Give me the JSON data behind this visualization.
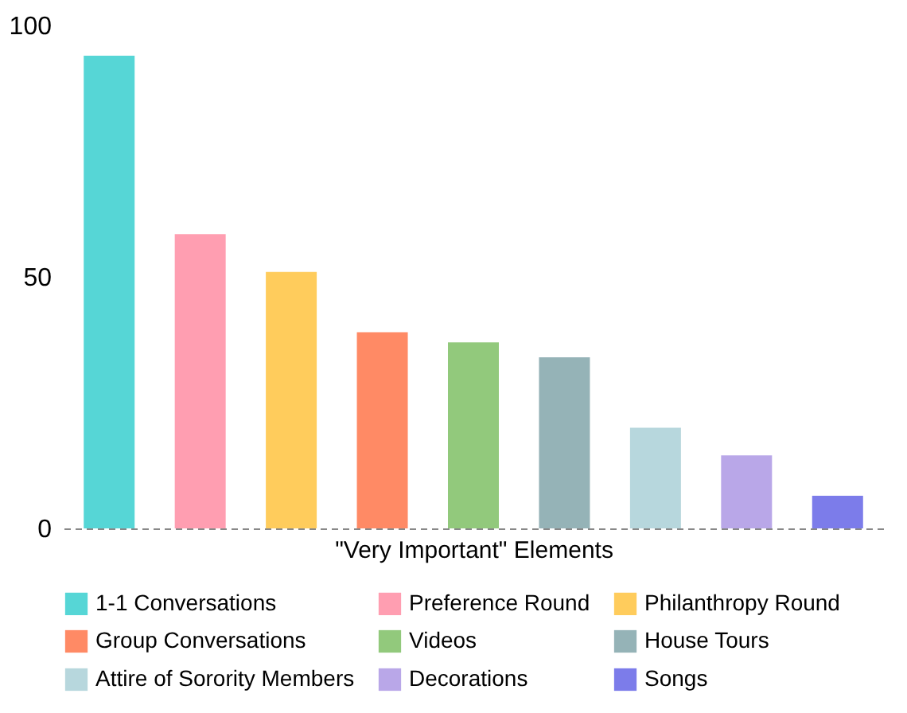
{
  "chart_data": {
    "type": "bar",
    "xlabel": "\"Very Important\" Elements",
    "categories": [
      null,
      null,
      null,
      null,
      null,
      null,
      null,
      null,
      null
    ],
    "series": [
      {
        "name": "1-1 Conversations",
        "color": "#56d6d6",
        "values": [
          94,
          null,
          null,
          null,
          null,
          null,
          null,
          null,
          null
        ]
      },
      {
        "name": "Preference Round",
        "color": "#ff9eb1",
        "values": [
          null,
          58.5,
          null,
          null,
          null,
          null,
          null,
          null,
          null
        ]
      },
      {
        "name": "Philanthropy Round",
        "color": "#ffcc5c",
        "values": [
          null,
          null,
          51,
          null,
          null,
          null,
          null,
          null,
          null
        ]
      },
      {
        "name": "Group Conversations",
        "color": "#ff8a65",
        "values": [
          null,
          null,
          null,
          39,
          null,
          null,
          null,
          null,
          null
        ]
      },
      {
        "name": "Videos",
        "color": "#92c97c",
        "values": [
          null,
          null,
          null,
          null,
          37,
          null,
          null,
          null,
          null
        ]
      },
      {
        "name": "House Tours",
        "color": "#95b3b7",
        "values": [
          null,
          null,
          null,
          null,
          null,
          34,
          null,
          null,
          null
        ]
      },
      {
        "name": "Attire of Sorority Members",
        "color": "#b7d7dd",
        "values": [
          null,
          null,
          null,
          null,
          null,
          null,
          20,
          null,
          null
        ]
      },
      {
        "name": "Decorations",
        "color": "#b9a7e8",
        "values": [
          null,
          null,
          null,
          null,
          null,
          null,
          null,
          14.5,
          null
        ]
      },
      {
        "name": "Songs",
        "color": "#7c7cea",
        "values": [
          null,
          null,
          null,
          null,
          null,
          null,
          null,
          null,
          6.5
        ]
      }
    ],
    "ylim": [
      0,
      100
    ],
    "yticks": [
      0,
      50,
      100
    ],
    "grid": false,
    "legend": "bottom",
    "tick_labels": "y"
  }
}
